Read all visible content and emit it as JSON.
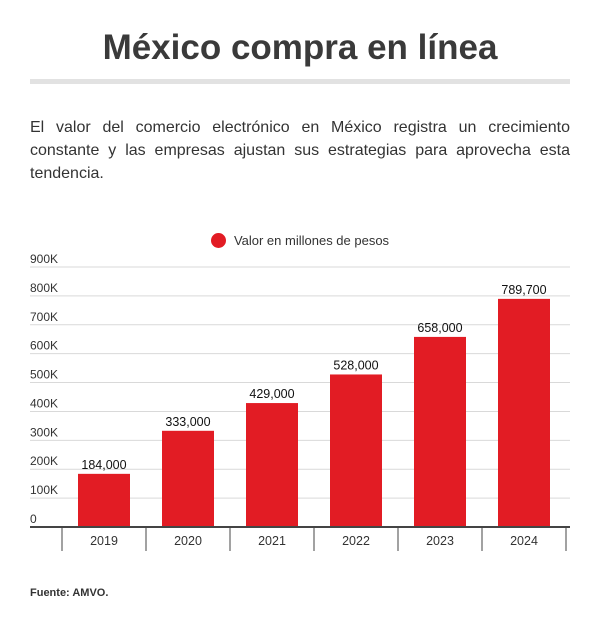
{
  "title": "México compra en línea",
  "description": "El valor del comercio electrónico en México registra un crecimiento constante y las empresas ajustan sus estrategias para aprovecha esta tendencia.",
  "source": "Fuente: AMVO.",
  "chart_data": {
    "type": "bar",
    "categories": [
      "2019",
      "2020",
      "2021",
      "2022",
      "2023",
      "2024"
    ],
    "series": [
      {
        "name": "Valor en millones de pesos",
        "values": [
          184000,
          333000,
          429000,
          528000,
          658000,
          789700
        ],
        "labels": [
          "184,000",
          "333,000",
          "429,000",
          "528,000",
          "658,000",
          "789,700"
        ],
        "color": "#e21c24"
      }
    ],
    "ylim": [
      0,
      900000
    ],
    "yticks": [
      0,
      100000,
      200000,
      300000,
      400000,
      500000,
      600000,
      700000,
      800000,
      900000
    ],
    "ytick_labels": [
      "0",
      "100K",
      "200K",
      "300K",
      "400K",
      "500K",
      "600K",
      "700K",
      "800K",
      "900K"
    ],
    "grid": true,
    "legend": "top-center"
  }
}
